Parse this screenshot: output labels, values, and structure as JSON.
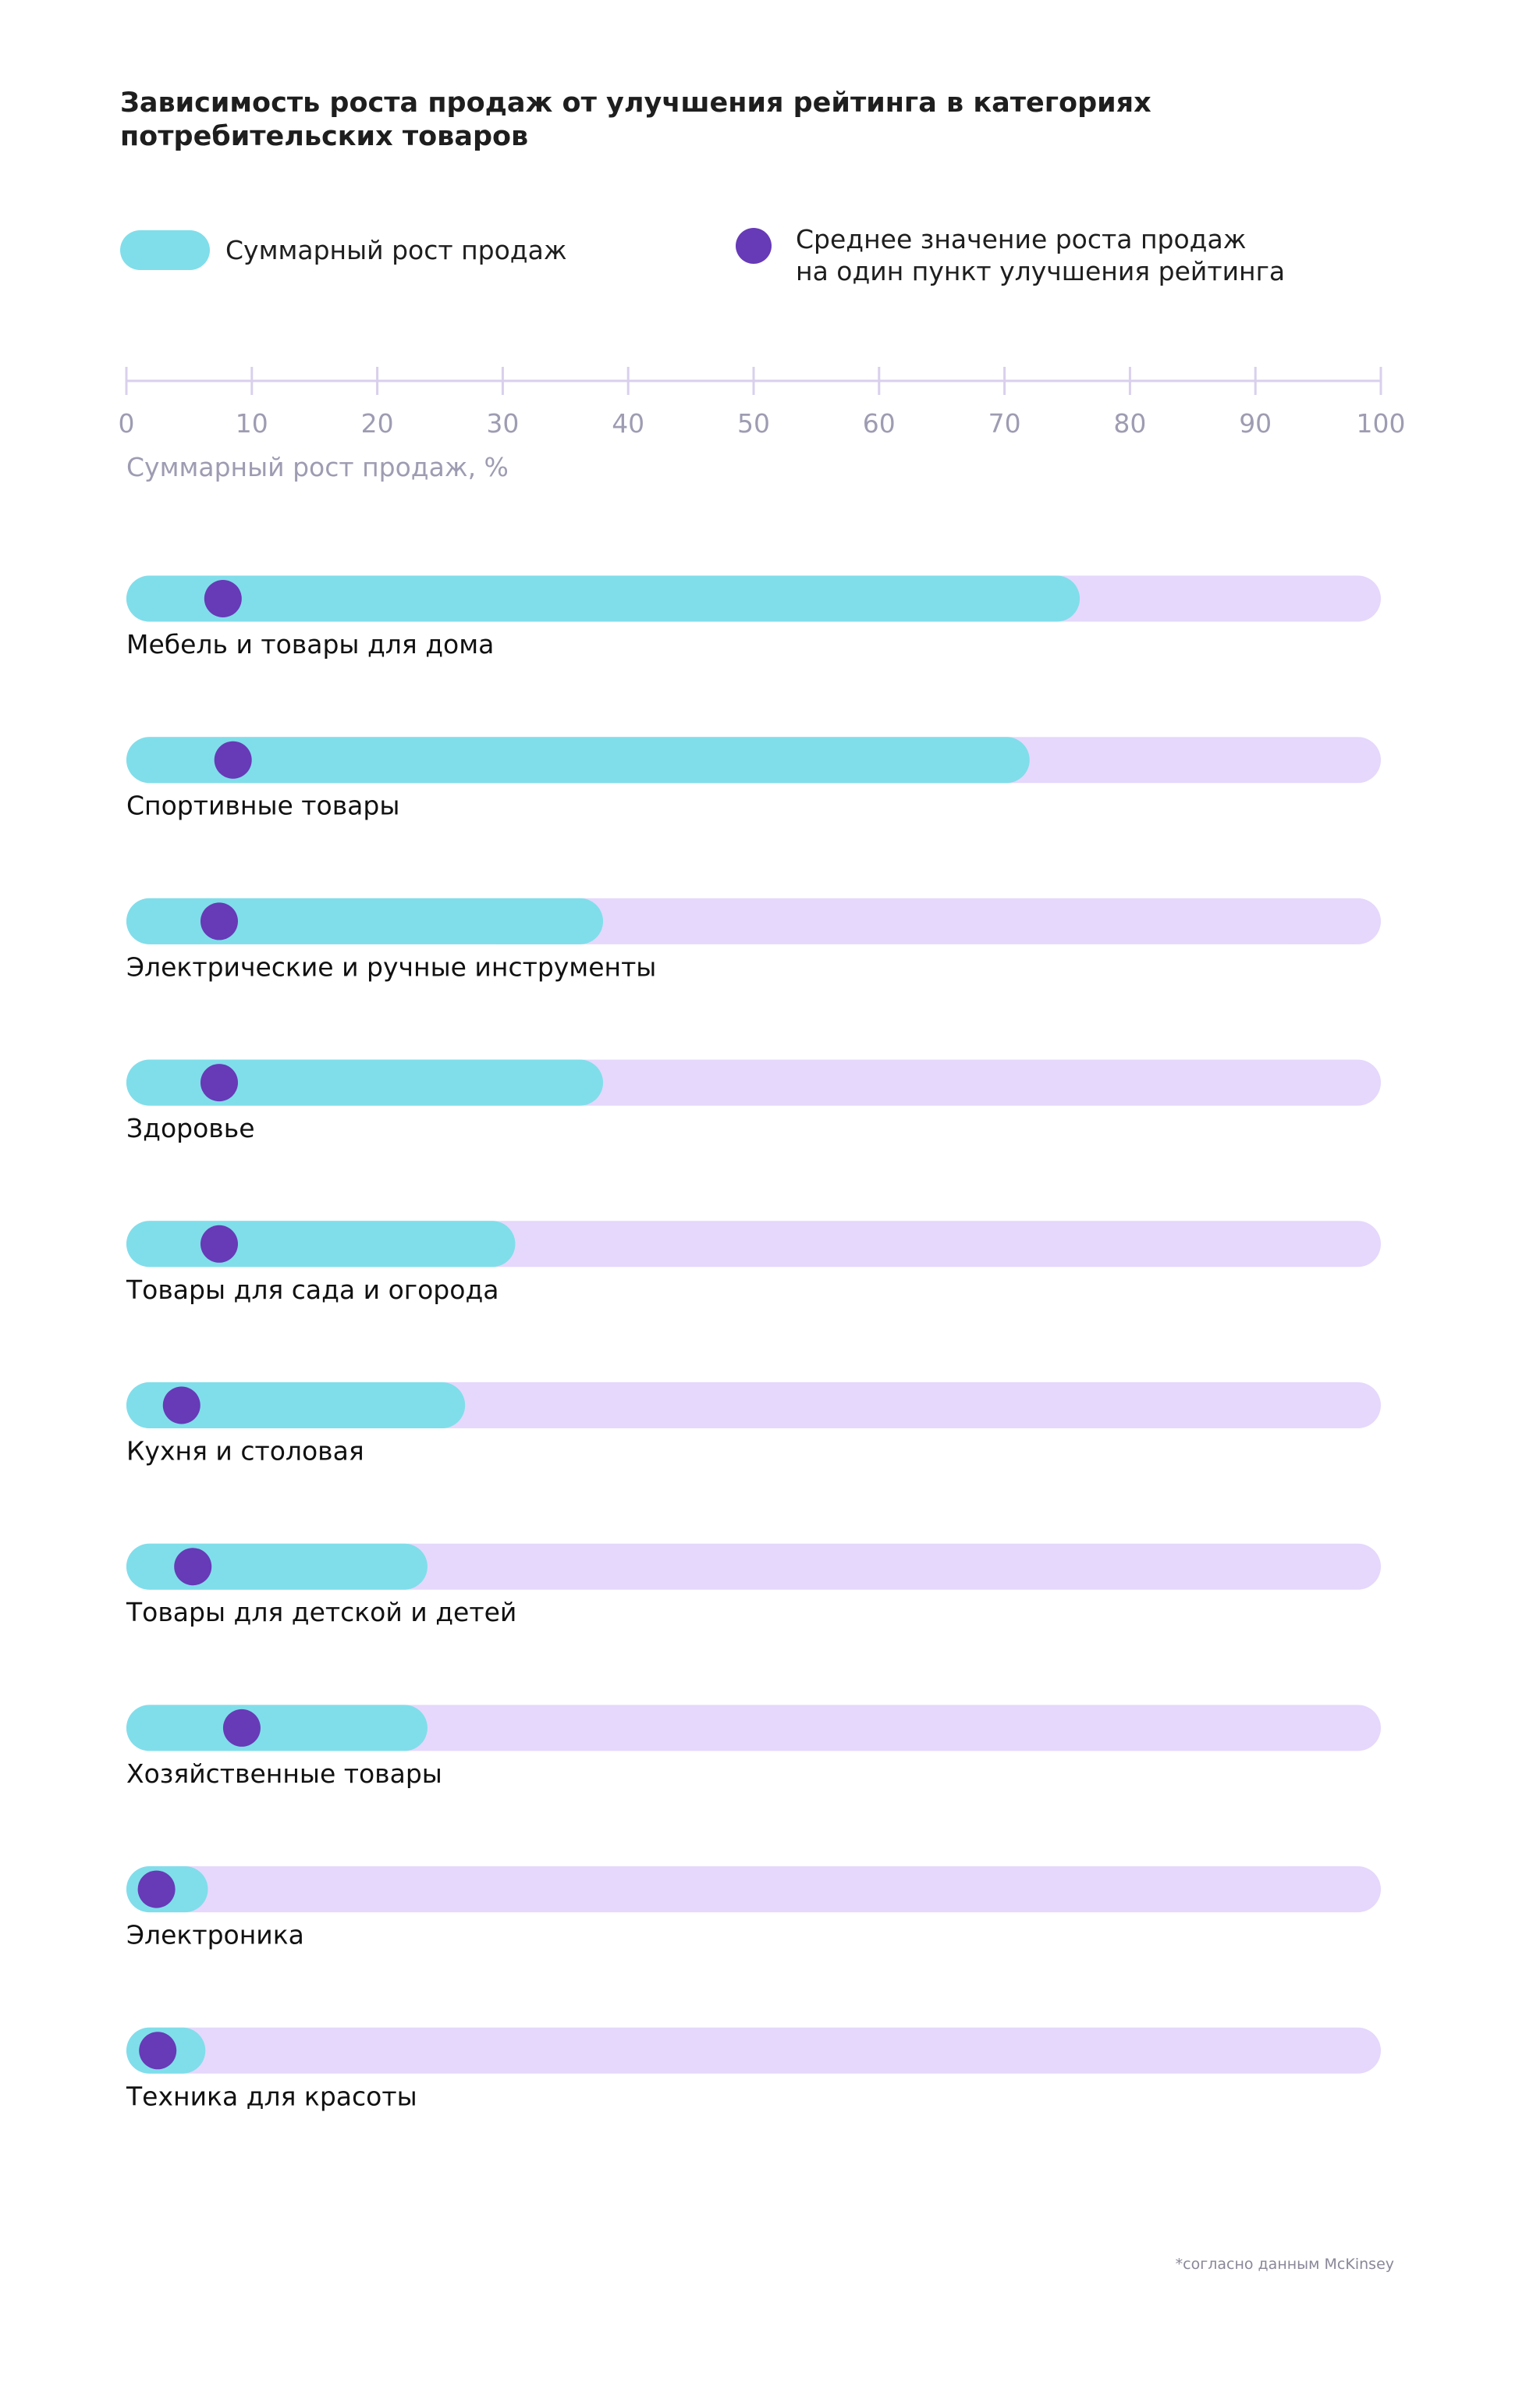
{
  "chart_data": {
    "type": "bar",
    "title_lines": [
      "Зависимость роста продаж от улучшения рейтинга в категориях",
      "потребительских товаров"
    ],
    "legend": {
      "bar": "Суммарный рост продаж",
      "dot_lines": [
        "Среднее значение роста продаж",
        "на один пункт улучшения рейтинга"
      ]
    },
    "xlabel": "Суммарный рост продаж, %",
    "xlim": [
      0,
      100
    ],
    "ticks": [
      0,
      10,
      20,
      30,
      40,
      50,
      60,
      70,
      80,
      90,
      100
    ],
    "categories": [
      "Мебель и товары для дома",
      "Спортивные товары",
      "Электрические и ручные инструменты",
      "Здоровье",
      "Товары для сада и огорода",
      "Кухня и столовая",
      "Товары для детской и детей",
      "Хозяйственные товары",
      "Электроника",
      "Техника для красоты"
    ],
    "series": [
      {
        "name": "Суммарный рост продаж",
        "values": [
          76,
          72,
          38,
          38,
          31,
          27,
          24,
          24,
          6.5,
          6.3
        ]
      },
      {
        "name": "Среднее значение роста продаж на один пункт улучшения рейтинга",
        "values": [
          7.7,
          8.5,
          7.4,
          7.4,
          7.4,
          4.4,
          5.3,
          9.2,
          2.4,
          2.5
        ]
      }
    ],
    "legend_position": "top",
    "grid": false,
    "footnote": "*согласно данным McKinsey",
    "colors": {
      "bar": "#80deea",
      "track": "#e5d8fc",
      "dot": "#673ab7",
      "axis": "#d8d0ec",
      "tick_text": "#9e9cb2"
    }
  }
}
